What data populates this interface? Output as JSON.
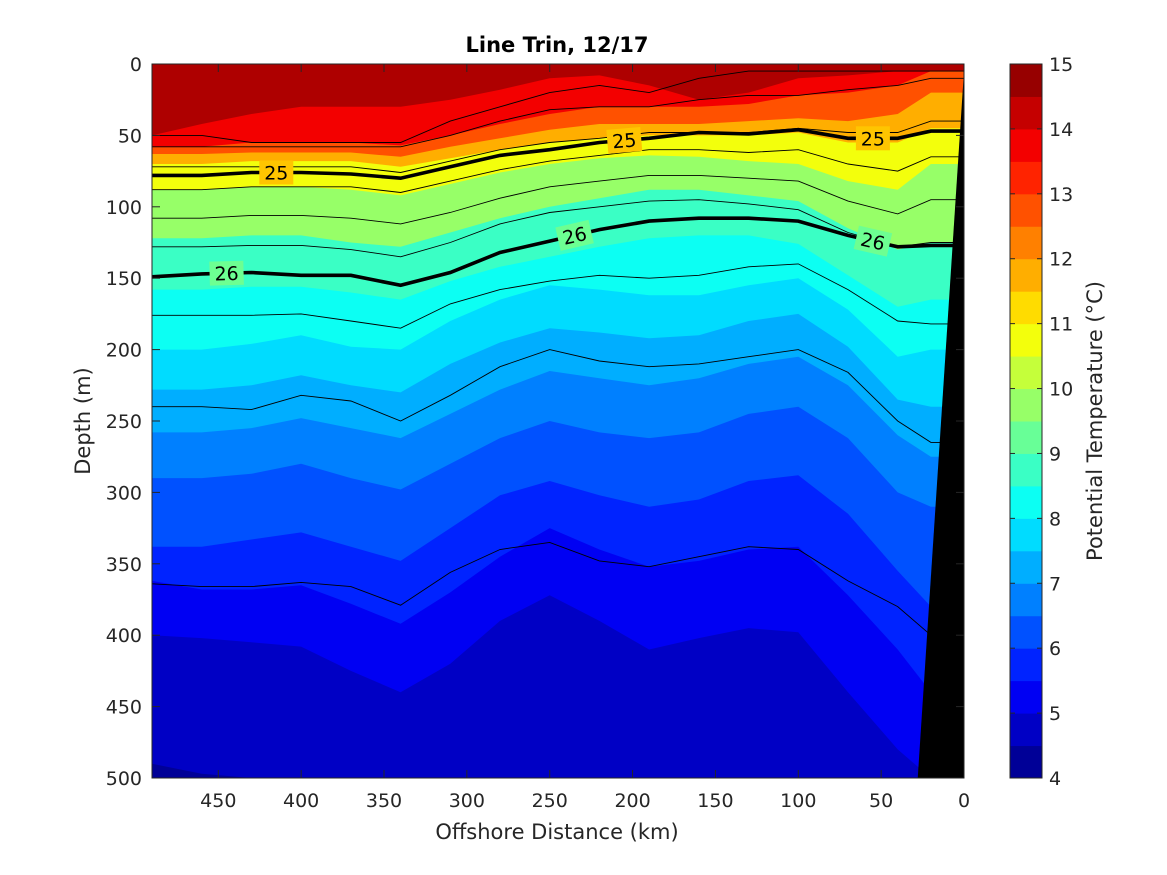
{
  "chart_data": {
    "type": "heatmap",
    "subtype": "filled-contour section",
    "title": "Line Trin, 12/17",
    "xlabel": "Offshore Distance (km)",
    "ylabel": "Depth (m)",
    "colorbar_label": "Potential Temperature (°C)",
    "xlim": [
      490,
      0
    ],
    "x_reversed": true,
    "ylim": [
      0,
      500
    ],
    "y_reversed": true,
    "clim": [
      4,
      15
    ],
    "colormap": "jet",
    "xticks": [
      450,
      400,
      350,
      300,
      250,
      200,
      150,
      100,
      50,
      0
    ],
    "yticks": [
      0,
      50,
      100,
      150,
      200,
      250,
      300,
      350,
      400,
      450,
      500
    ],
    "cticks": [
      4,
      5,
      6,
      7,
      8,
      9,
      10,
      11,
      12,
      13,
      14,
      15
    ],
    "distance": [
      490,
      460,
      430,
      400,
      370,
      340,
      310,
      280,
      250,
      220,
      190,
      160,
      130,
      100,
      70,
      40,
      20
    ],
    "isotherms": [
      {
        "temp": 14,
        "depth": [
          50,
          42,
          35,
          30,
          30,
          30,
          25,
          18,
          10,
          8,
          15,
          25,
          20,
          10,
          8,
          5,
          5
        ]
      },
      {
        "temp": 13,
        "depth": [
          58,
          58,
          55,
          55,
          55,
          57,
          50,
          42,
          35,
          30,
          30,
          30,
          28,
          22,
          20,
          15,
          5
        ]
      },
      {
        "temp": 12,
        "depth": [
          63,
          63,
          62,
          62,
          62,
          65,
          58,
          52,
          46,
          42,
          42,
          42,
          40,
          38,
          40,
          35,
          20
        ]
      },
      {
        "temp": 11,
        "depth": [
          70,
          70,
          68,
          68,
          68,
          72,
          66,
          60,
          55,
          52,
          50,
          50,
          50,
          48,
          55,
          55,
          45
        ]
      },
      {
        "temp": 10,
        "depth": [
          88,
          88,
          86,
          86,
          88,
          92,
          84,
          76,
          70,
          66,
          64,
          65,
          68,
          70,
          82,
          88,
          70
        ]
      },
      {
        "temp": 9,
        "depth": [
          122,
          122,
          120,
          120,
          125,
          128,
          118,
          108,
          100,
          94,
          88,
          88,
          92,
          96,
          115,
          130,
          125
        ]
      },
      {
        "temp": 8.5,
        "depth": [
          158,
          158,
          156,
          156,
          160,
          165,
          152,
          142,
          135,
          128,
          122,
          120,
          120,
          126,
          148,
          170,
          165
        ]
      },
      {
        "temp": 8,
        "depth": [
          200,
          200,
          196,
          190,
          198,
          200,
          180,
          165,
          155,
          158,
          162,
          162,
          155,
          150,
          172,
          205,
          200
        ]
      },
      {
        "temp": 7.5,
        "depth": [
          228,
          228,
          225,
          218,
          225,
          230,
          210,
          195,
          185,
          188,
          192,
          190,
          180,
          175,
          198,
          235,
          240
        ]
      },
      {
        "temp": 7,
        "depth": [
          258,
          258,
          255,
          248,
          255,
          262,
          245,
          228,
          215,
          220,
          225,
          220,
          210,
          205,
          225,
          260,
          275
        ]
      },
      {
        "temp": 6.5,
        "depth": [
          290,
          290,
          287,
          280,
          290,
          298,
          280,
          262,
          250,
          258,
          262,
          258,
          245,
          240,
          262,
          300,
          310
        ]
      },
      {
        "temp": 6,
        "depth": [
          338,
          338,
          333,
          328,
          338,
          348,
          325,
          302,
          292,
          302,
          310,
          305,
          292,
          288,
          315,
          355,
          380
        ]
      },
      {
        "temp": 5.5,
        "depth": [
          362,
          368,
          368,
          365,
          378,
          392,
          370,
          345,
          325,
          340,
          352,
          348,
          340,
          338,
          372,
          410,
          440
        ]
      },
      {
        "temp": 5,
        "depth": [
          400,
          402,
          405,
          408,
          425,
          440,
          420,
          390,
          372,
          390,
          410,
          402,
          395,
          398,
          440,
          480,
          500
        ]
      },
      {
        "temp": 4.5,
        "depth": [
          490,
          497,
          500,
          500,
          500,
          500,
          500,
          500,
          500,
          500,
          500,
          500,
          500,
          500,
          500,
          500,
          500
        ]
      }
    ],
    "contour_lines": [
      {
        "depth": [
          50,
          50,
          55,
          55,
          55,
          55,
          40,
          30,
          20,
          15,
          20,
          10,
          5,
          5,
          5,
          5,
          5
        ]
      },
      {
        "depth": [
          58,
          58,
          58,
          58,
          58,
          58,
          50,
          40,
          32,
          30,
          30,
          25,
          22,
          22,
          18,
          15,
          10
        ]
      },
      {
        "depth": [
          72,
          72,
          72,
          72,
          72,
          76,
          68,
          60,
          55,
          52,
          48,
          48,
          48,
          45,
          48,
          48,
          40
        ]
      },
      {
        "depth": [
          88,
          88,
          86,
          86,
          86,
          90,
          82,
          74,
          68,
          64,
          60,
          60,
          62,
          60,
          70,
          75,
          65
        ]
      },
      {
        "depth": [
          108,
          108,
          106,
          106,
          108,
          112,
          104,
          94,
          86,
          82,
          78,
          78,
          80,
          82,
          96,
          105,
          95
        ]
      },
      {
        "depth": [
          128,
          128,
          127,
          127,
          130,
          135,
          125,
          112,
          104,
          100,
          96,
          95,
          98,
          102,
          118,
          128,
          125
        ]
      },
      {
        "depth": [
          176,
          176,
          176,
          175,
          180,
          185,
          168,
          158,
          152,
          148,
          150,
          148,
          142,
          140,
          158,
          180,
          182
        ]
      },
      {
        "depth": [
          240,
          240,
          242,
          232,
          236,
          250,
          232,
          212,
          200,
          208,
          212,
          210,
          205,
          200,
          216,
          250,
          265
        ]
      },
      {
        "depth": [
          364,
          366,
          366,
          363,
          366,
          379,
          356,
          340,
          335,
          348,
          352,
          345,
          338,
          340,
          362,
          380,
          400
        ]
      }
    ],
    "labeled_isopycnals": [
      {
        "label": "25",
        "depth": [
          78,
          78,
          76,
          76,
          77,
          80,
          72,
          64,
          60,
          55,
          52,
          48,
          49,
          46,
          52,
          52,
          47
        ]
      },
      {
        "label": "26",
        "depth": [
          149,
          147,
          146,
          148,
          148,
          155,
          146,
          132,
          124,
          116,
          110,
          108,
          108,
          110,
          120,
          128,
          127
        ]
      }
    ],
    "seafloor": {
      "distance_top": 0,
      "depth_top": 5,
      "distance_bottom": 28,
      "depth_bottom": 500,
      "color": "#000000"
    }
  }
}
